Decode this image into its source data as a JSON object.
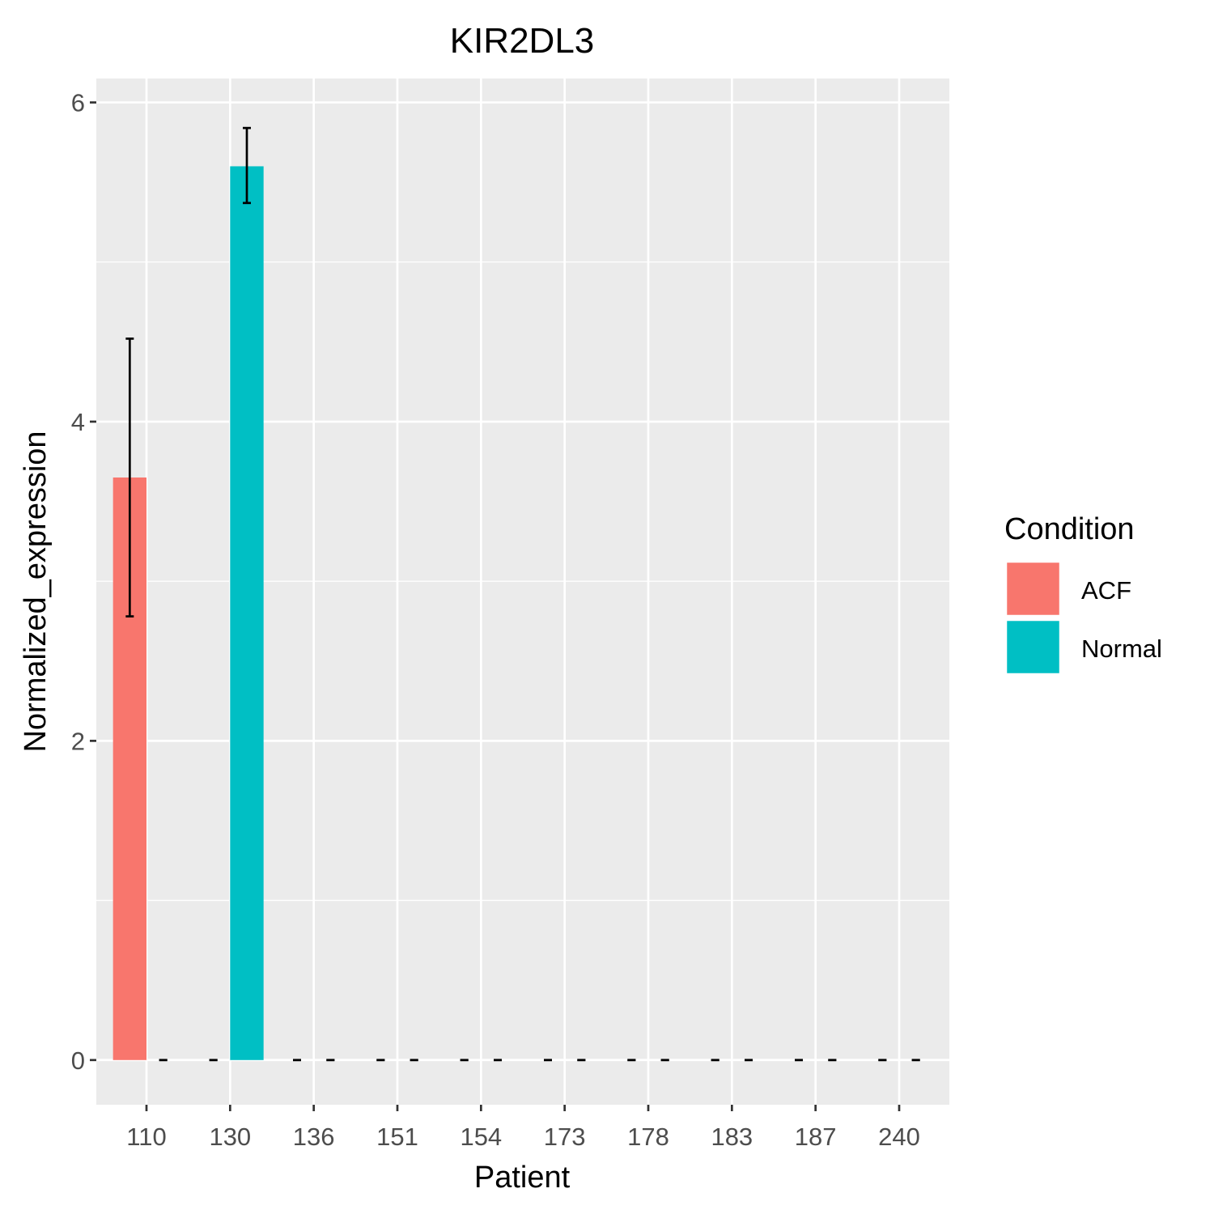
{
  "chart_data": {
    "type": "bar",
    "title": "KIR2DL3",
    "xlabel": "Patient",
    "ylabel": "Normalized_expression",
    "categories": [
      "110",
      "130",
      "136",
      "151",
      "154",
      "173",
      "178",
      "183",
      "187",
      "240"
    ],
    "yticks": [
      "0",
      "2",
      "4",
      "6"
    ],
    "ylim": [
      -0.28,
      6.15
    ],
    "grid": true,
    "legend": {
      "title": "Condition",
      "position": "right",
      "entries": [
        {
          "name": "ACF",
          "color": "#F8766D"
        },
        {
          "name": "Normal",
          "color": "#00BFC4"
        }
      ]
    },
    "series": [
      {
        "name": "ACF",
        "color": "#F8766D",
        "values": [
          3.65,
          0,
          0,
          0,
          0,
          0,
          0,
          0,
          0,
          0
        ],
        "error": [
          [
            2.78,
            4.52
          ],
          [
            0,
            0
          ],
          [
            0,
            0
          ],
          [
            0,
            0
          ],
          [
            0,
            0
          ],
          [
            0,
            0
          ],
          [
            0,
            0
          ],
          [
            0,
            0
          ],
          [
            0,
            0
          ],
          [
            0,
            0
          ]
        ]
      },
      {
        "name": "Normal",
        "color": "#00BFC4",
        "values": [
          0,
          5.6,
          0,
          0,
          0,
          0,
          0,
          0,
          0,
          0
        ],
        "error": [
          [
            0,
            0
          ],
          [
            5.37,
            5.84
          ],
          [
            0,
            0
          ],
          [
            0,
            0
          ],
          [
            0,
            0
          ],
          [
            0,
            0
          ],
          [
            0,
            0
          ],
          [
            0,
            0
          ],
          [
            0,
            0
          ],
          [
            0,
            0
          ]
        ]
      }
    ]
  }
}
